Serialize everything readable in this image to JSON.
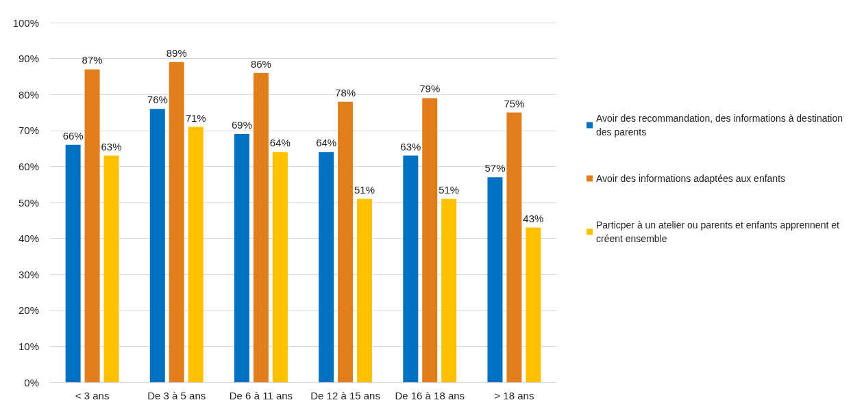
{
  "chart_data": {
    "type": "bar",
    "categories": [
      "< 3 ans",
      "De 3 à 5 ans",
      "De 6 à 11 ans",
      "De 12 à 15 ans",
      "De 16 à 18 ans",
      "> 18 ans"
    ],
    "series": [
      {
        "name": "Avoir des recommandation, des informations à destination des parents",
        "color": "#0070c0",
        "values": [
          66,
          76,
          69,
          64,
          63,
          57
        ],
        "value_labels": [
          "66%",
          "76%",
          "69%",
          "64%",
          "63%",
          "57%"
        ]
      },
      {
        "name": "Avoir des informations adaptées aux enfants",
        "color": "#e07e1b",
        "values": [
          87,
          89,
          86,
          78,
          79,
          75
        ],
        "value_labels": [
          "87%",
          "89%",
          "86%",
          "78%",
          "79%",
          "75%"
        ]
      },
      {
        "name": "Particper à un atelier ou parents et enfants apprennent et créent ensemble",
        "color": "#ffc000",
        "values": [
          63,
          71,
          64,
          51,
          51,
          43
        ],
        "value_labels": [
          "63%",
          "71%",
          "64%",
          "51%",
          "51%",
          "43%"
        ]
      }
    ],
    "ylim": [
      0,
      100
    ],
    "yticks": [
      {
        "value": 0,
        "label": "0%"
      },
      {
        "value": 10,
        "label": "10%"
      },
      {
        "value": 20,
        "label": "20%"
      },
      {
        "value": 30,
        "label": "30%"
      },
      {
        "value": 40,
        "label": "40%"
      },
      {
        "value": 50,
        "label": "50%"
      },
      {
        "value": 60,
        "label": "60%"
      },
      {
        "value": 70,
        "label": "70%"
      },
      {
        "value": 80,
        "label": "80%"
      },
      {
        "value": 90,
        "label": "90%"
      },
      {
        "value": 100,
        "label": "100%"
      }
    ],
    "grid": "y",
    "legend": "right"
  }
}
